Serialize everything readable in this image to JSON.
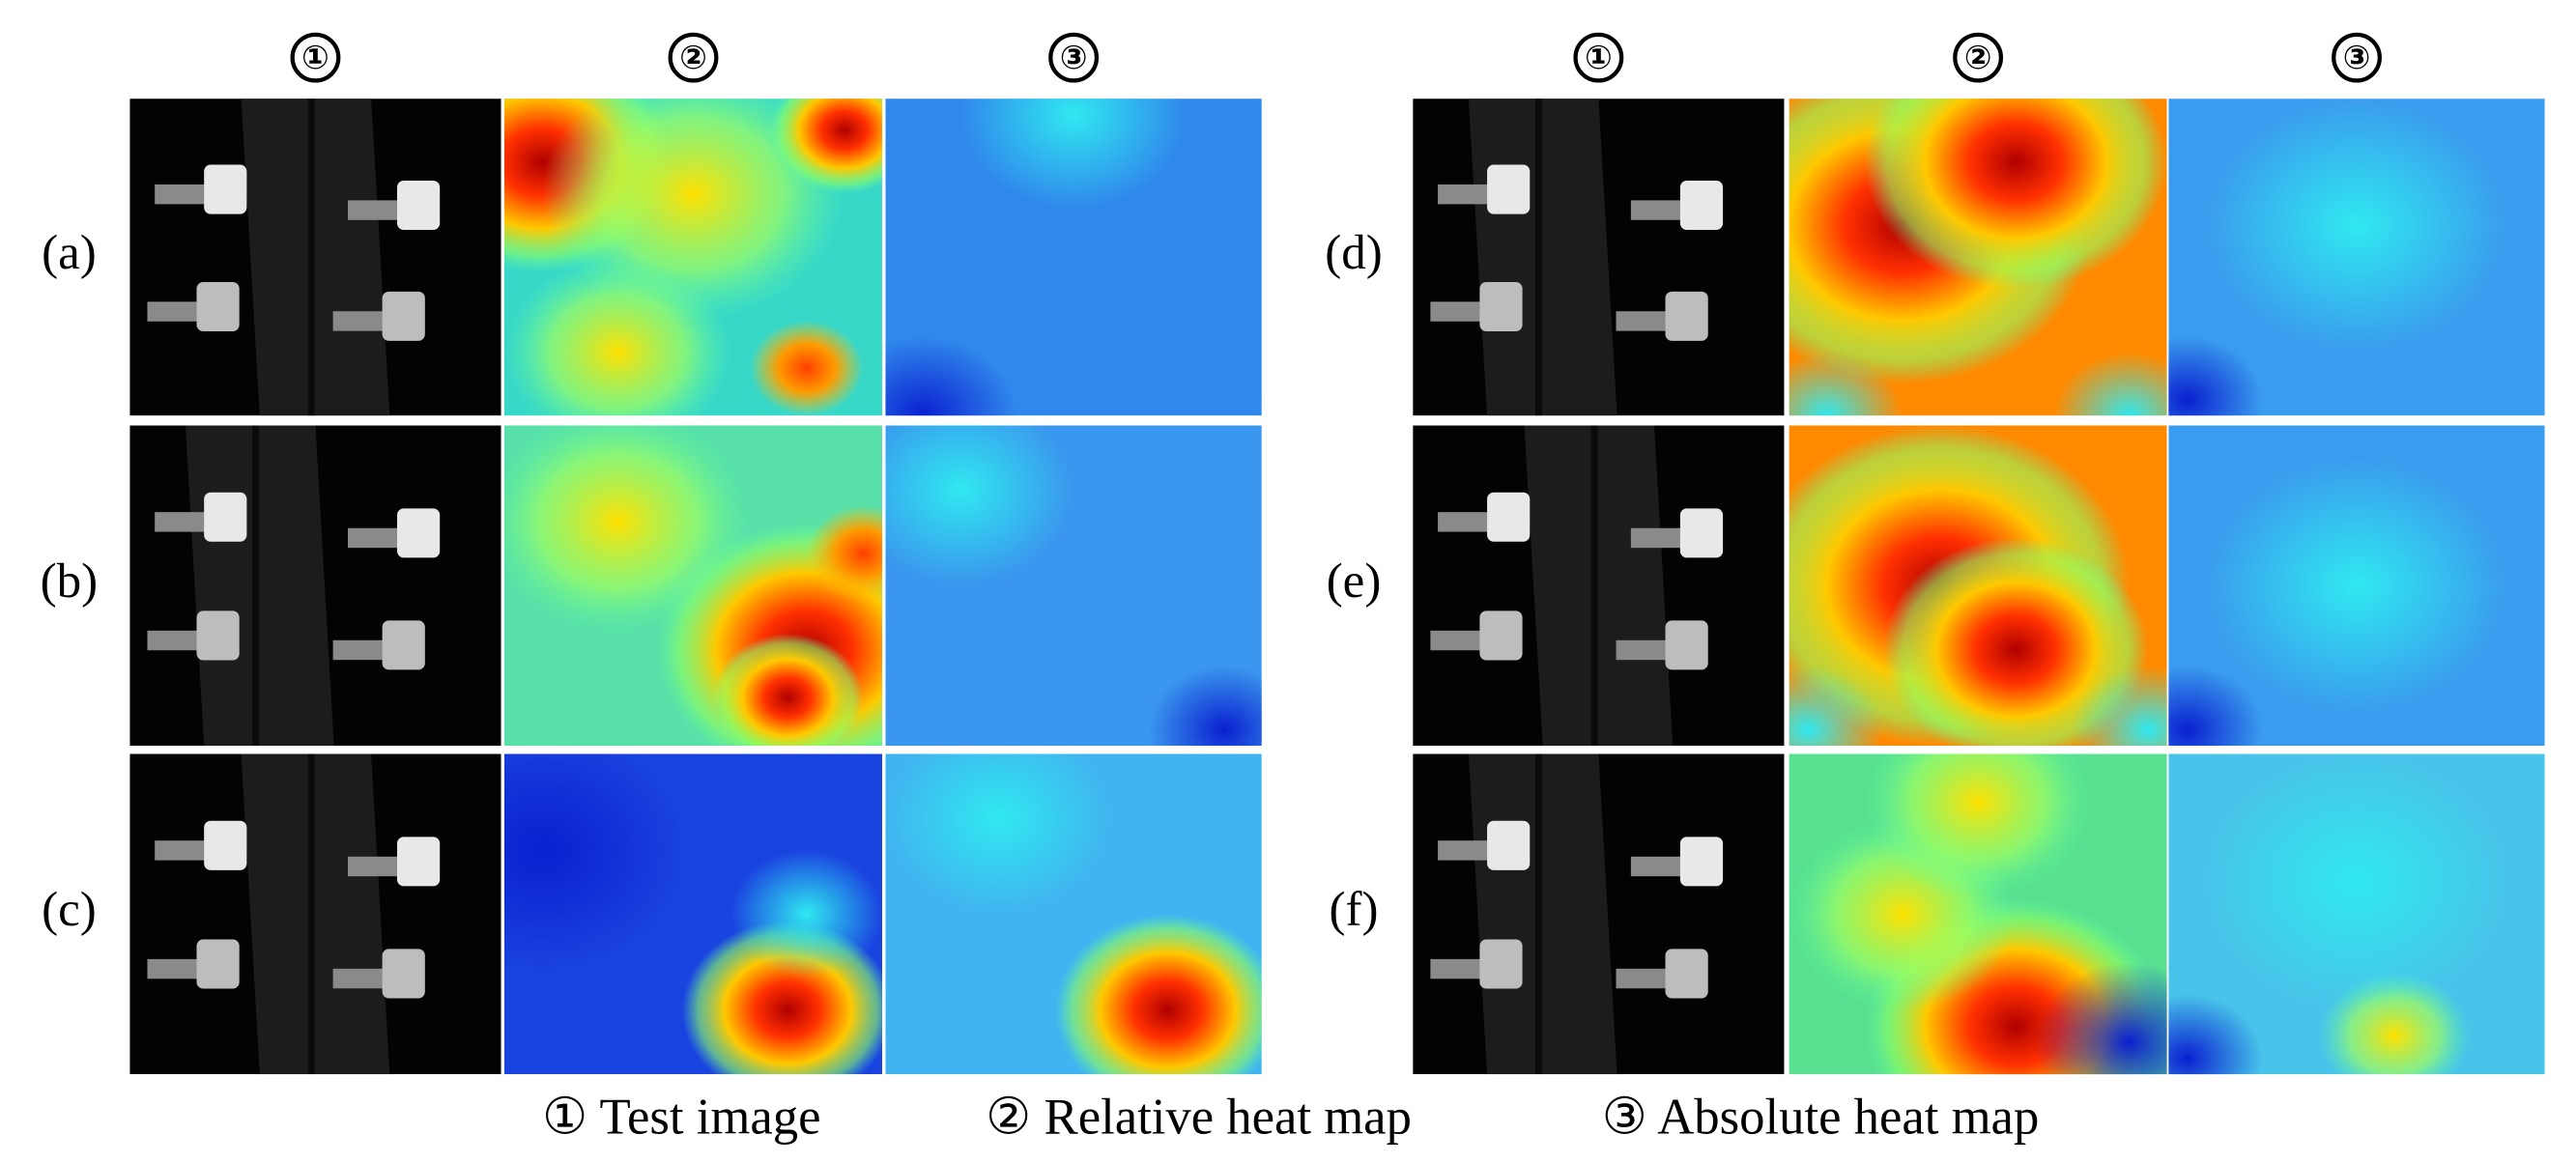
{
  "columns": [
    "①",
    "②",
    "③"
  ],
  "groups": [
    {
      "rows": [
        "(a)",
        "(b)",
        "(c)"
      ]
    },
    {
      "rows": [
        "(d)",
        "(e)",
        "(f)"
      ]
    }
  ],
  "legend": [
    "① Test image",
    "② Relative heat map",
    "③ Absolute heat map"
  ]
}
